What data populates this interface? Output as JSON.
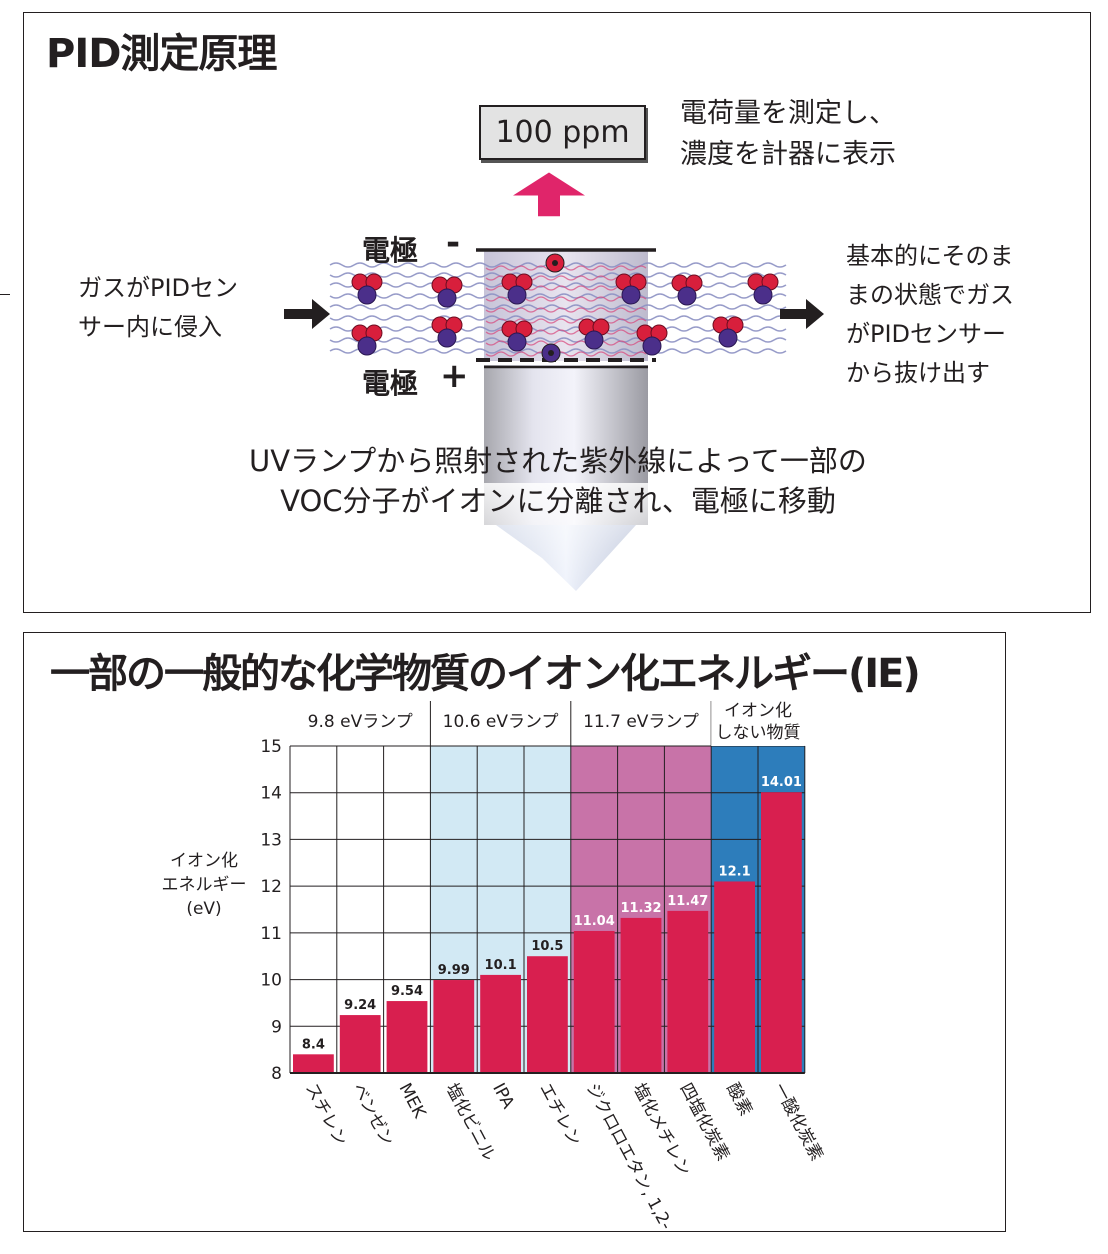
{
  "principle": {
    "title": "PID測定原理",
    "reading": "100 ppm",
    "measure_note_line1": "電荷量を測定し、",
    "measure_note_line2": "濃度を計器に表示",
    "electrode_top_label": "電極",
    "electrode_top_sign": "-",
    "electrode_bottom_label": "電極",
    "electrode_bottom_sign": "+",
    "gas_in_line1": "ガスがPIDセン",
    "gas_in_line2": "サー内に侵入",
    "gas_out_line1": "基本的にそのま",
    "gas_out_line2": "まの状態でガス",
    "gas_out_line3": "がPIDセンサー",
    "gas_out_line4": "から抜け出す",
    "caption_line1": "UVランプから照射された紫外線によって一部の",
    "caption_line2": "VOC分子がイオンに分離され、電極に移動",
    "colors": {
      "arrow": "#e0256a",
      "molecule_red": "#d81f3c",
      "molecule_blue": "#4b2f8a"
    }
  },
  "chart_title": "一部の一般的な化学物質のイオン化エネルギー(IE)",
  "chart_data": {
    "type": "bar",
    "title": "一部の一般的な化学物質のイオン化エネルギー(IE)",
    "ylabel_lines": [
      "イオン化",
      "エネルギー",
      "(eV)"
    ],
    "ylim": [
      8,
      15
    ],
    "yticks": [
      8,
      9,
      10,
      11,
      12,
      13,
      14,
      15
    ],
    "grid": true,
    "categories": [
      "スチレン",
      "ベンゼン",
      "MEK",
      "塩化ビニル",
      "IPA",
      "エチレン",
      "ジクロロエタン, 1,2-",
      "塩化メチレン",
      "四塩化炭素",
      "酸素",
      "一酸化炭素"
    ],
    "values": [
      8.4,
      9.24,
      9.54,
      9.99,
      10.1,
      10.5,
      11.04,
      11.32,
      11.47,
      12.1,
      14.01
    ],
    "value_labels": [
      "8.4",
      "9.24",
      "9.54",
      "9.99",
      "10.1",
      "10.5",
      "11.04",
      "11.32",
      "11.47",
      "12.1",
      "14.01"
    ],
    "groups": [
      {
        "name": "9.8 eVランプ",
        "name_lines": [
          "9.8 eVランプ"
        ],
        "start": 0,
        "count": 3,
        "color": "#ffffff"
      },
      {
        "name": "10.6 eVランプ",
        "name_lines": [
          "10.6 eVランプ"
        ],
        "start": 3,
        "count": 3,
        "color": "#d2e9f4"
      },
      {
        "name": "11.7 eVランプ",
        "name_lines": [
          "11.7 eVランプ"
        ],
        "start": 6,
        "count": 3,
        "color": "#c873a8"
      },
      {
        "name": "イオン化しない物質",
        "name_lines": [
          "イオン化",
          "しない物質"
        ],
        "start": 9,
        "count": 2,
        "color": "#2d7dbb"
      }
    ],
    "bar_color": "#d81f4f"
  }
}
